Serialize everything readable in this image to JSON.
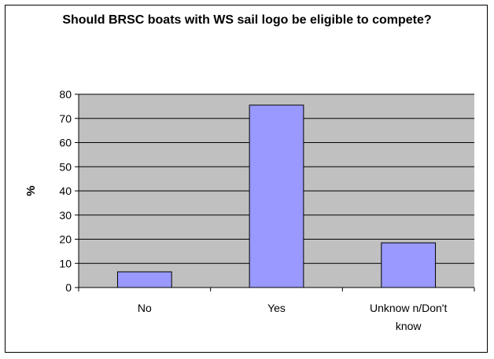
{
  "chart_data": {
    "type": "bar",
    "title": "Should BRSC boats with WS sail logo be eligible to compete?",
    "xlabel": "",
    "ylabel": "%",
    "categories": [
      "No",
      "Yes",
      "Unknow n/Don't know"
    ],
    "values": [
      6.5,
      75.5,
      18.5
    ],
    "ylim": [
      0,
      80
    ],
    "yticks": [
      0,
      10,
      20,
      30,
      40,
      50,
      60,
      70,
      80
    ],
    "grid": true,
    "legend": "none",
    "colors": {
      "plot_background": "#c0c0c0",
      "bar_fill": "#9999ff",
      "bar_stroke": "#000000",
      "gridline": "#000000"
    }
  }
}
